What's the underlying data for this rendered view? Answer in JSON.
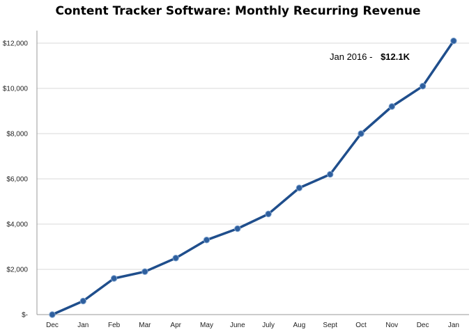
{
  "chart_data": {
    "type": "line",
    "title": "Content Tracker Software: Monthly Recurring Revenue",
    "categories": [
      "Dec",
      "Jan",
      "Feb",
      "Mar",
      "Apr",
      "May",
      "June",
      "July",
      "Aug",
      "Sept",
      "Oct",
      "Nov",
      "Dec",
      "Jan"
    ],
    "series": [
      {
        "values": [
          0,
          600,
          1600,
          1900,
          2500,
          3300,
          3800,
          4450,
          5600,
          6200,
          8000,
          9200,
          10100,
          12100
        ]
      }
    ],
    "ylim": [
      0,
      12000
    ],
    "yticks": [
      0,
      2000,
      4000,
      6000,
      8000,
      10000,
      12000
    ],
    "ytick_labels": [
      "$-",
      "$2,000",
      "$4,000",
      "$6,000",
      "$8,000",
      "$10,000",
      "$12,000"
    ],
    "grid": true,
    "line_color": "#1f4e8c",
    "marker_color": "#2e5f9e",
    "annotation": {
      "label": "Jan 2016 -",
      "value": "$12.1K"
    }
  }
}
